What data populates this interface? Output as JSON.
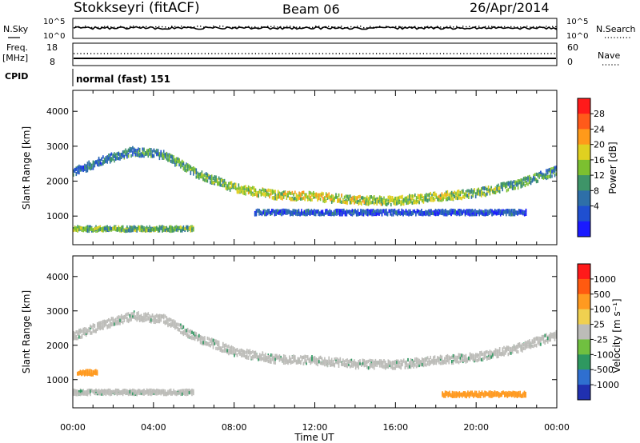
{
  "header": {
    "station": "Stokkseyri (fitACF)",
    "beam": "Beam 06",
    "date": "26/Apr/2014"
  },
  "status_panel": {
    "nsky_label": "N.Sky",
    "nsearch_label": "N.Search",
    "count_ticks": [
      "10^5",
      "10^0"
    ],
    "freq_label": "Freq.",
    "freq_unit": "[MHz]",
    "freq_ticks": [
      "18",
      "8"
    ],
    "nave_label": "Nave",
    "nave_ticks": [
      "60",
      "0"
    ],
    "cpid_label": "CPID",
    "cpid_value": "normal (fast) 151"
  },
  "chart_data": [
    {
      "type": "heatmap",
      "panel": "power",
      "ylabel": "Slant Range [km]",
      "xlabel": "",
      "ylim": [
        180,
        4600
      ],
      "xlim": [
        0,
        24
      ],
      "yticks": [
        1000,
        2000,
        3000,
        4000
      ],
      "xticks": [
        0,
        4,
        8,
        12,
        16,
        20,
        24
      ],
      "colorbar": {
        "label": "Power [dB]",
        "ticks": [
          "28",
          "24",
          "20",
          "16",
          "12",
          "8",
          "4"
        ],
        "range": [
          0,
          30
        ],
        "colors": [
          "#1a1aff",
          "#1f4fd0",
          "#2e6fa8",
          "#3e9468",
          "#7cc030",
          "#e0d020",
          "#ff9a1a",
          "#ff5a1a",
          "#ff1a1a"
        ]
      },
      "bands": [
        {
          "t": [
            0.0,
            1.5,
            3.0,
            4.5,
            6.0,
            8.0,
            10.0,
            12.0,
            14.0,
            16.0,
            18.0,
            20.0,
            22.0,
            24.0
          ],
          "range_km": [
            2300,
            2650,
            2900,
            2800,
            2300,
            1850,
            1650,
            1600,
            1500,
            1480,
            1600,
            1700,
            1950,
            2350
          ],
          "power_db": [
            7,
            8,
            10,
            11,
            13,
            15,
            17,
            18,
            16,
            15,
            16,
            14,
            12,
            10
          ]
        },
        {
          "t": [
            0.0,
            6.0
          ],
          "range_km": [
            680,
            680
          ],
          "power_db": [
            14,
            12
          ]
        },
        {
          "t": [
            9.0,
            22.5
          ],
          "range_km": [
            1150,
            1150
          ],
          "power_db": [
            6,
            5
          ]
        }
      ]
    },
    {
      "type": "heatmap",
      "panel": "velocity",
      "ylabel": "Slant Range [km]",
      "xlabel": "Time UT",
      "ylim": [
        180,
        4600
      ],
      "xlim": [
        0,
        24
      ],
      "yticks": [
        1000,
        2000,
        3000,
        4000
      ],
      "xticks": [
        0,
        4,
        8,
        12,
        16,
        20,
        24
      ],
      "xtick_labels": [
        "00:00",
        "04:00",
        "08:00",
        "12:00",
        "16:00",
        "20:00",
        "00:00"
      ],
      "colorbar": {
        "label": "Velocity [m s⁻¹]",
        "ticks": [
          "1000",
          "500",
          "100",
          "25",
          "-25",
          "-100",
          "-500",
          "-1000"
        ],
        "colors": [
          "#2030b0",
          "#2f6fd0",
          "#2e9860",
          "#70c040",
          "#bcbcb8",
          "#f0d050",
          "#ff9a20",
          "#ff5a10",
          "#ff1a1a"
        ]
      },
      "bands": [
        {
          "t": [
            0.0,
            1.5,
            3.0,
            4.5,
            6.0,
            8.0,
            10.0,
            12.0,
            14.0,
            16.0,
            18.0,
            20.0,
            22.0,
            24.0
          ],
          "range_km": [
            2300,
            2650,
            2900,
            2800,
            2300,
            1850,
            1650,
            1600,
            1500,
            1480,
            1600,
            1700,
            1950,
            2350
          ],
          "velocity": [
            0,
            0,
            0,
            0,
            0,
            0,
            0,
            0,
            0,
            0,
            0,
            0,
            0,
            0
          ]
        },
        {
          "t": [
            0.0,
            6.0
          ],
          "range_km": [
            680,
            680
          ],
          "velocity": [
            0,
            0
          ]
        },
        {
          "t": [
            18.3,
            22.5
          ],
          "range_km": [
            620,
            620
          ],
          "velocity": [
            -400,
            -400
          ]
        },
        {
          "t": [
            0.2,
            1.2
          ],
          "range_km": [
            1250,
            1250
          ],
          "velocity": [
            -300,
            -300
          ]
        }
      ]
    }
  ]
}
